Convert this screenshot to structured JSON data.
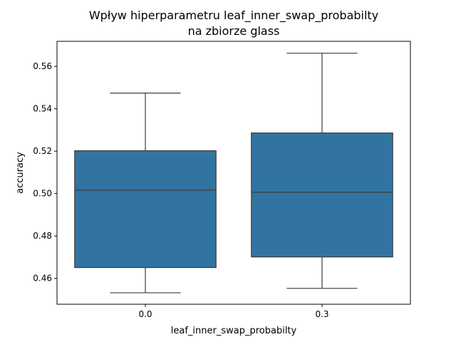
{
  "chart_data": {
    "type": "box",
    "title_line1": "Wpływ hiperparametru leaf_inner_swap_probabilty",
    "title_line2": "na zbiorze glass",
    "xlabel": "leaf_inner_swap_probabilty",
    "ylabel": "accuracy",
    "ylim": [
      0.4478,
      0.5718
    ],
    "yticks": [
      "0.46",
      "0.48",
      "0.50",
      "0.52",
      "0.54",
      "0.56"
    ],
    "ytick_values": [
      0.46,
      0.48,
      0.5,
      0.52,
      0.54,
      0.56
    ],
    "categories": [
      "0.0",
      "0.3"
    ],
    "box_color": "#3274a1",
    "line_color": "#3d3d3d",
    "boxes": [
      {
        "category": "0.0",
        "whisker_low": 0.4532,
        "q1": 0.4651,
        "median": 0.5016,
        "q3": 0.5202,
        "whisker_high": 0.5474
      },
      {
        "category": "0.3",
        "whisker_low": 0.4553,
        "q1": 0.4701,
        "median": 0.5006,
        "q3": 0.5286,
        "whisker_high": 0.5662
      }
    ]
  }
}
